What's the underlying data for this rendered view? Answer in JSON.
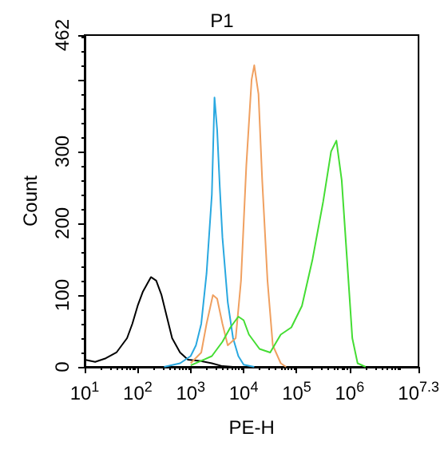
{
  "chart_data": {
    "type": "line",
    "title": "P1",
    "xlabel": "PE-H",
    "ylabel": "Count",
    "log": "x",
    "grid": false,
    "marker": "none",
    "line_style": "solid",
    "xlim": [
      10,
      19952623
    ],
    "xticks": [
      {
        "value": 10,
        "label": "10$^{1}$"
      },
      {
        "value": 100,
        "label": "10$^{2}$"
      },
      {
        "value": 1000,
        "label": "10$^{3}$"
      },
      {
        "value": 10000,
        "label": "10$^{4}$"
      },
      {
        "value": 100000,
        "label": "10$^{5}$"
      },
      {
        "value": 1000000,
        "label": "10$^{6}$"
      },
      {
        "value": 19952623,
        "label": "10$^{7.3}$"
      }
    ],
    "ylim": [
      0,
      462
    ],
    "yticks": [
      0,
      100,
      200,
      300,
      {
        "value": 400,
        "label": null
      },
      462
    ],
    "series": [
      {
        "color": "#000000",
        "x": [
          10,
          15.8,
          25.1,
          39.8,
          63.1,
          79.4,
          100,
          126,
          178,
          224,
          282,
          355,
          447,
          631,
          891,
          1585,
          2512,
          3981,
          6310
        ],
        "values": [
          10,
          7,
          12,
          20,
          40,
          60,
          85,
          105,
          125,
          120,
          100,
          70,
          40,
          20,
          10,
          8,
          5,
          1,
          0
        ]
      },
      {
        "color": "#29a8e0",
        "x": [
          316,
          631,
          1000,
          1259,
          1585,
          1995,
          2512,
          2818,
          3162,
          3548,
          3981,
          5012,
          6310,
          7943,
          10000,
          15849
        ],
        "values": [
          0,
          5,
          15,
          30,
          60,
          130,
          240,
          375,
          330,
          250,
          180,
          90,
          40,
          15,
          3,
          0
        ]
      },
      {
        "color": "#f0a060",
        "x": [
          1000,
          1585,
          1995,
          2630,
          3162,
          3981,
          5012,
          7079,
          8913,
          11220,
          14125,
          15849,
          19055,
          22387,
          28184,
          35481,
          50119,
          63096
        ],
        "values": [
          5,
          20,
          60,
          100,
          95,
          60,
          30,
          40,
          120,
          280,
          400,
          420,
          380,
          260,
          120,
          30,
          5,
          0
        ]
      },
      {
        "color": "#44dd33",
        "x": [
          1000,
          2512,
          3981,
          5623,
          7943,
          10000,
          12589,
          19953,
          31623,
          50119,
          79433,
          125893,
          199526,
          316228,
          446684,
          562341,
          707946,
          891251,
          1122018,
          1412538,
          1995262
        ],
        "values": [
          2,
          15,
          35,
          55,
          70,
          65,
          45,
          25,
          20,
          45,
          55,
          85,
          150,
          230,
          300,
          315,
          260,
          150,
          40,
          5,
          0
        ]
      }
    ]
  }
}
